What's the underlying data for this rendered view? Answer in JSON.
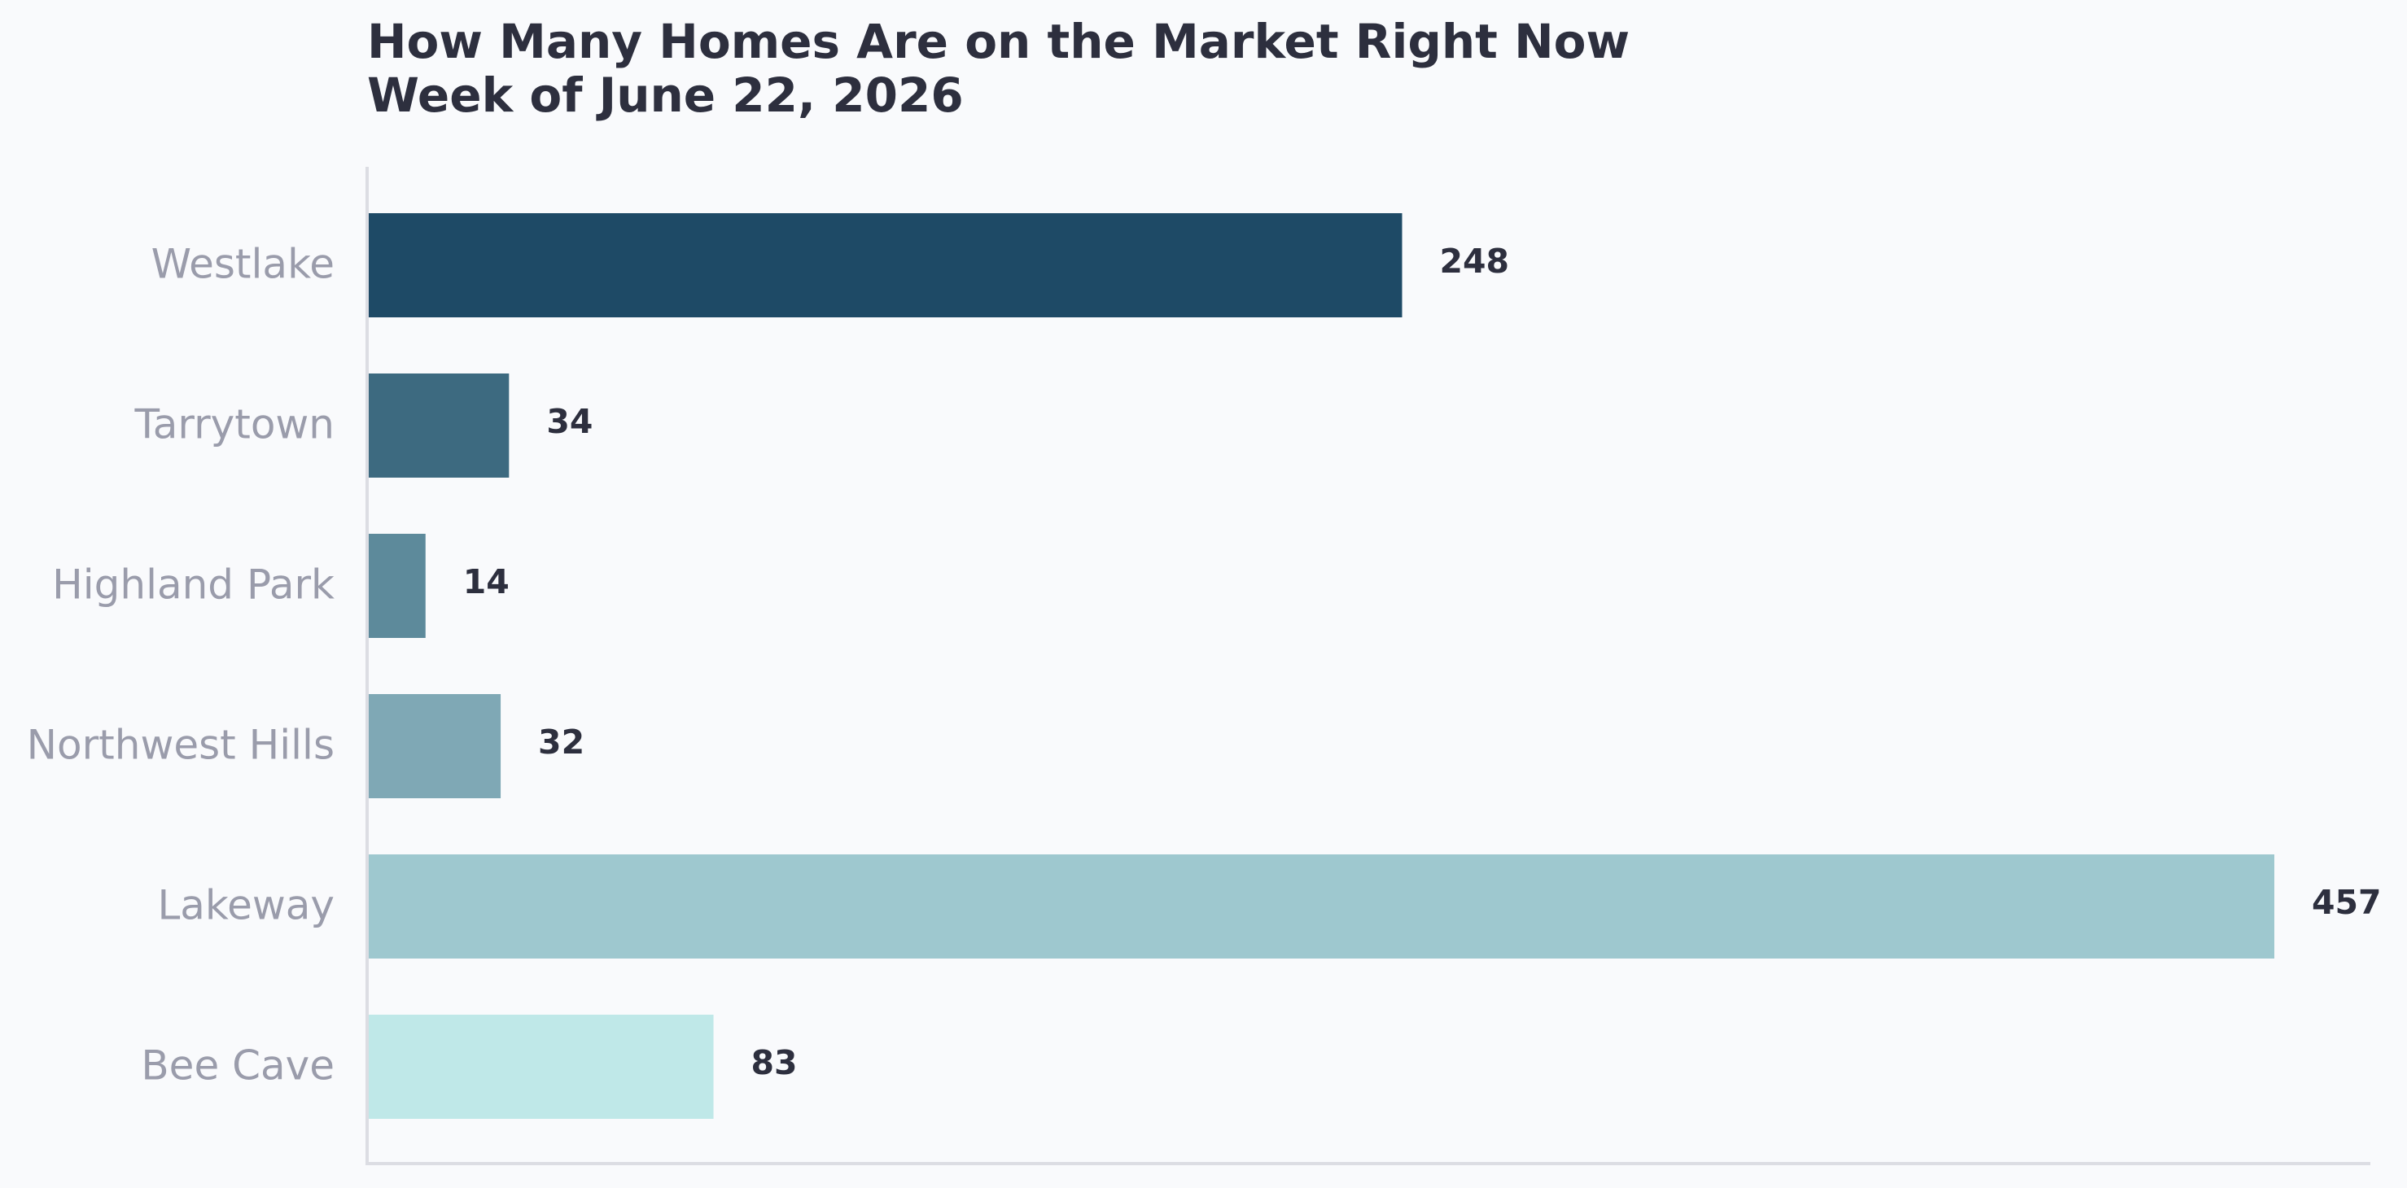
{
  "chart_data": {
    "type": "bar",
    "orientation": "horizontal",
    "title": "How Many Homes Are on the Market Right Now",
    "subtitle": "Week of June 22, 2026",
    "xlabel": "",
    "ylabel": "",
    "categories": [
      "Westlake",
      "Tarrytown",
      "Highland Park",
      "Northwest Hills",
      "Lakeway",
      "Bee Cave"
    ],
    "values": [
      248,
      34,
      14,
      32,
      457,
      83
    ],
    "colors": [
      "#1e4a66",
      "#3d6a80",
      "#5d8a9b",
      "#7fa8b5",
      "#9ec8cf",
      "#bfe8e8"
    ],
    "xlim": [
      0,
      480
    ],
    "grid": false,
    "legend": "none",
    "data_labels": true
  }
}
